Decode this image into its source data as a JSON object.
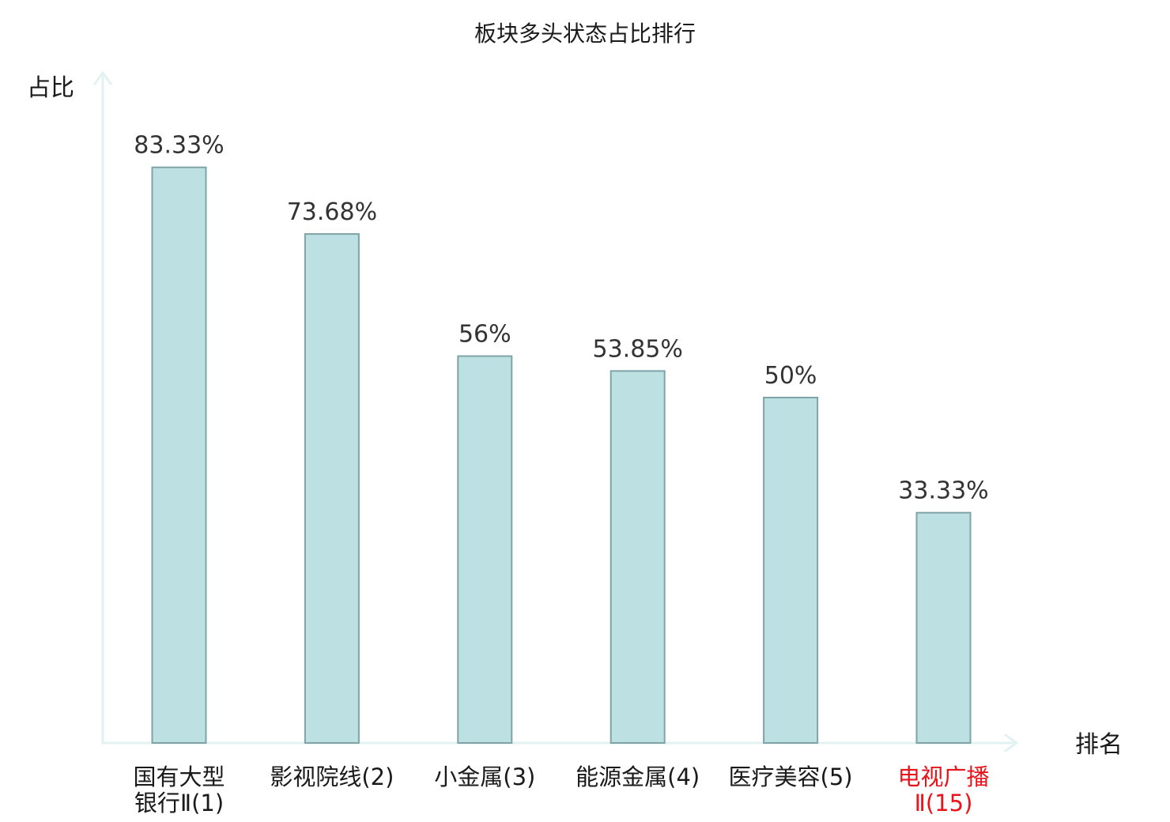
{
  "chart_data": {
    "type": "bar",
    "title": "板块多头状态占比排行",
    "ylabel": "占比",
    "xlabel": "排名",
    "categories": [
      [
        "国有大型",
        "银行Ⅱ(1)"
      ],
      [
        "影视院线(2)"
      ],
      [
        "小金属(3)"
      ],
      [
        "能源金属(4)"
      ],
      [
        "医疗美容(5)"
      ],
      [
        "电视广播",
        "Ⅱ(15)"
      ]
    ],
    "values": [
      83.33,
      73.68,
      56,
      53.85,
      50,
      33.33
    ],
    "value_labels": [
      "83.33%",
      "73.68%",
      "56%",
      "53.85%",
      "50%",
      "33.33%"
    ],
    "highlight_index": 5,
    "ylim": [
      0,
      100
    ],
    "grid": false,
    "legend": "none"
  },
  "colors": {
    "bar_fill": "#bde0e2",
    "bar_stroke": "#7fa4a7",
    "axis": "#e1f2f0",
    "text": "#1a1a1a",
    "value_text": "#333333",
    "highlight": "#e8141b"
  }
}
